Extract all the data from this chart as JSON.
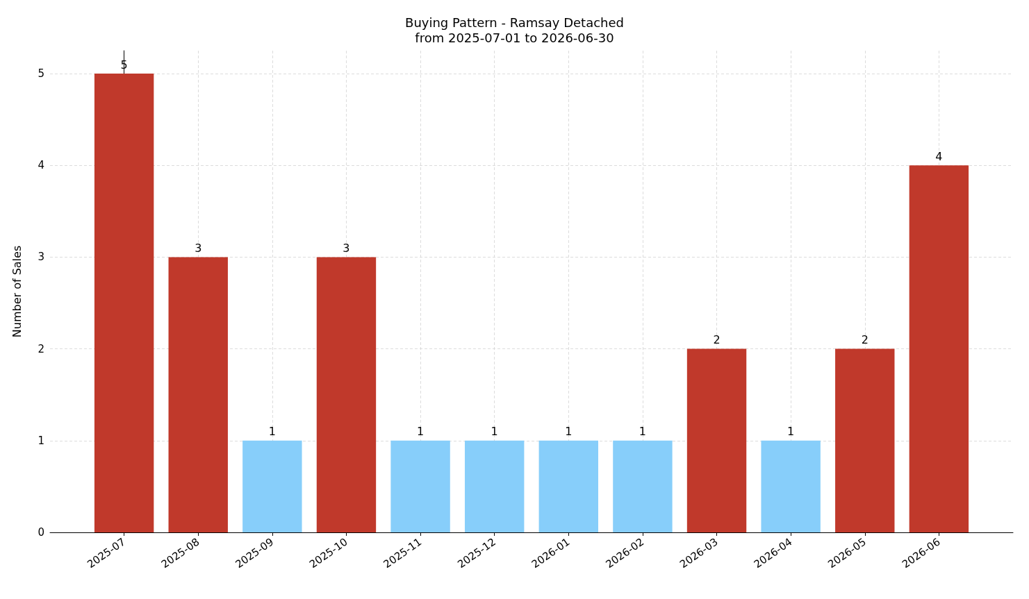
{
  "chart_data": {
    "type": "bar",
    "title": "Buying Pattern - Ramsay Detached",
    "subtitle": "from 2025-07-01 to 2026-06-30",
    "ylabel": "Number of Sales",
    "categories": [
      "2025-07",
      "2025-08",
      "2025-09",
      "2025-10",
      "2025-11",
      "2025-12",
      "2026-01",
      "2026-02",
      "2026-03",
      "2026-04",
      "2026-05",
      "2026-06"
    ],
    "values": [
      5,
      3,
      1,
      3,
      1,
      1,
      1,
      1,
      2,
      1,
      2,
      4
    ],
    "colors": [
      "#c0392b",
      "#c0392b",
      "#87cefa",
      "#c0392b",
      "#87cefa",
      "#87cefa",
      "#87cefa",
      "#87cefa",
      "#c0392b",
      "#87cefa",
      "#c0392b",
      "#c0392b"
    ],
    "ylim": [
      0,
      5.25
    ],
    "yticks": [
      0,
      1,
      2,
      3,
      4,
      5
    ],
    "grid": true,
    "data_labels": true
  }
}
